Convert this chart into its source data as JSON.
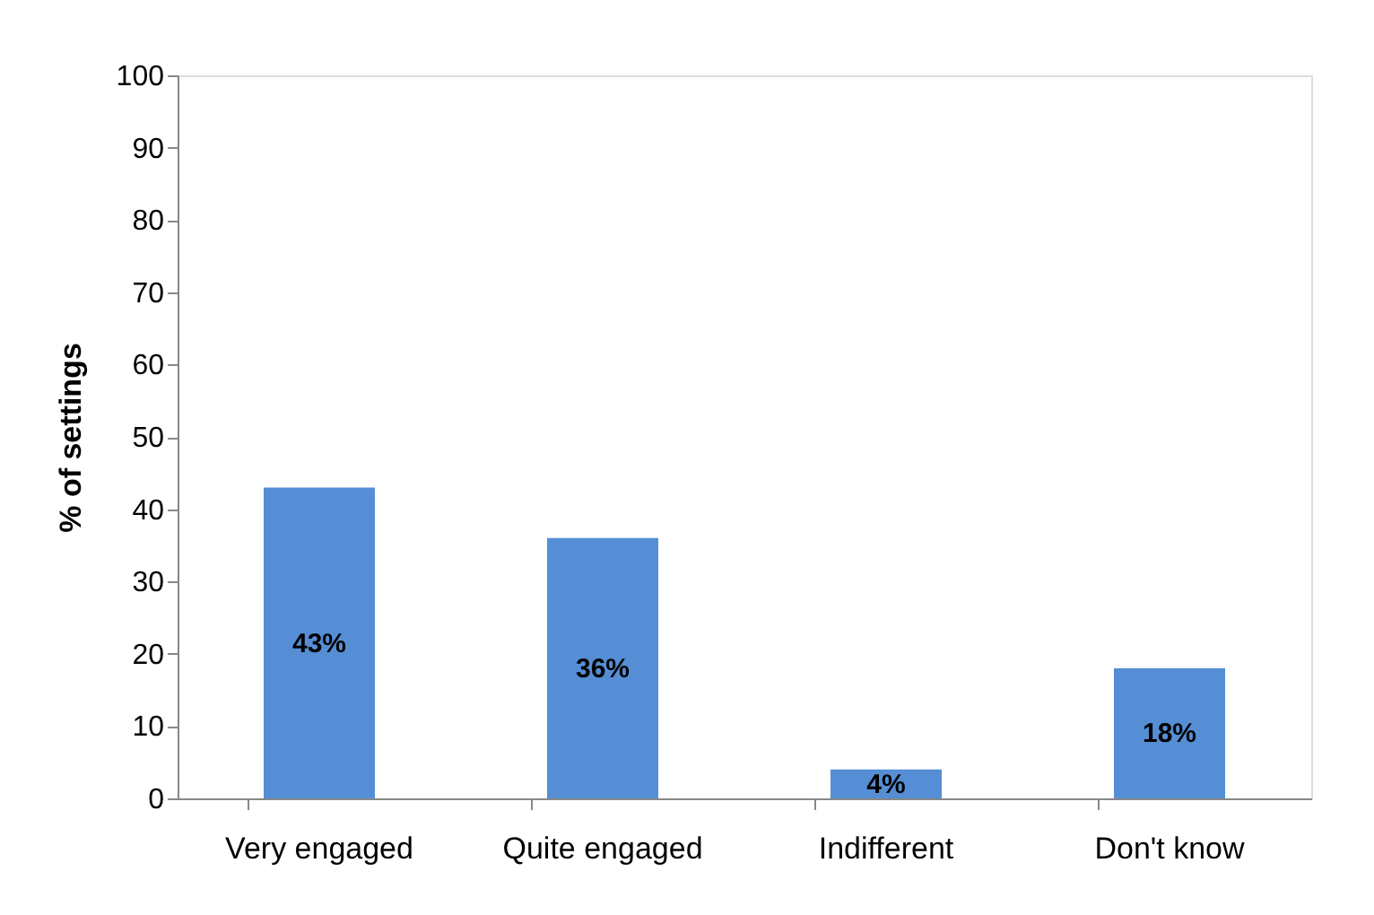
{
  "chart_data": {
    "type": "bar",
    "ylabel": "% of settings",
    "categories": [
      "Very engaged",
      "Quite engaged",
      "Indifferent",
      "Don't know"
    ],
    "values": [
      43,
      36,
      4,
      18
    ],
    "color": "#558ed5",
    "value_labels": [
      "43%",
      "36%",
      "4%",
      "18%"
    ],
    "ylim": [
      0,
      100
    ],
    "yticks": [
      0,
      10,
      20,
      30,
      40,
      50,
      60,
      70,
      80,
      90,
      100
    ],
    "grid": false
  }
}
